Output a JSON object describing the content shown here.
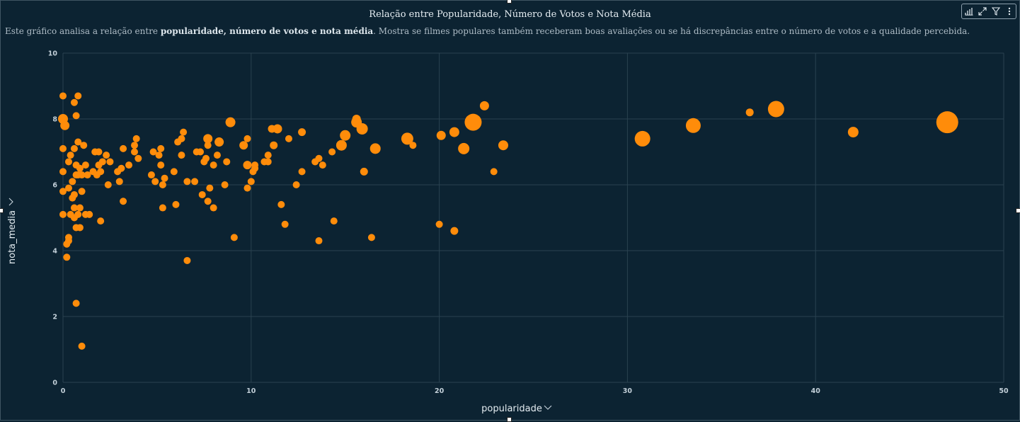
{
  "header": {
    "title": "Relação entre Popularidade, Número de Votos e Nota Média",
    "subtitle_pre": "Este gráfico analisa a relação entre ",
    "subtitle_bold": "popularidade, número de votos e nota média",
    "subtitle_post": ". Mostra se filmes populares também receberam boas avaliações ou se há discrepâncias entre o número de votos e a qualidade percebida."
  },
  "toolbar": {
    "icons": [
      "chart-settings-icon",
      "expand-icon",
      "filter-icon",
      "more-options-icon"
    ]
  },
  "colors": {
    "background": "#0c2332",
    "grid": "#2a4250",
    "point": "#ff8c0a"
  },
  "chart_data": {
    "type": "scatter",
    "title": "Relação entre Popularidade, Número de Votos e Nota Média",
    "xlabel": "popularidade",
    "ylabel": "nota_media",
    "xlim": [
      0,
      50
    ],
    "ylim": [
      0,
      10
    ],
    "x_ticks": [
      "0",
      "10",
      "20",
      "30",
      "40",
      "50"
    ],
    "y_ticks": [
      "0",
      "2",
      "4",
      "6",
      "8",
      "10"
    ],
    "grid": true,
    "size_encoding": "número de votos (relative)",
    "points": [
      {
        "x": 0.0,
        "y": 8.7,
        "s": 1
      },
      {
        "x": 0.0,
        "y": 8.0,
        "s": 1.4
      },
      {
        "x": 0.1,
        "y": 7.8,
        "s": 1.3
      },
      {
        "x": 0.0,
        "y": 7.1,
        "s": 1
      },
      {
        "x": 0.0,
        "y": 6.4,
        "s": 1
      },
      {
        "x": 0.0,
        "y": 5.8,
        "s": 1
      },
      {
        "x": 0.0,
        "y": 5.1,
        "s": 1
      },
      {
        "x": 0.2,
        "y": 4.2,
        "s": 1
      },
      {
        "x": 0.2,
        "y": 3.8,
        "s": 1
      },
      {
        "x": 0.3,
        "y": 4.3,
        "s": 1
      },
      {
        "x": 0.3,
        "y": 4.4,
        "s": 1
      },
      {
        "x": 0.3,
        "y": 5.9,
        "s": 1
      },
      {
        "x": 0.3,
        "y": 6.7,
        "s": 1
      },
      {
        "x": 0.4,
        "y": 6.9,
        "s": 1
      },
      {
        "x": 0.4,
        "y": 5.1,
        "s": 1
      },
      {
        "x": 0.5,
        "y": 5.6,
        "s": 1
      },
      {
        "x": 0.5,
        "y": 6.1,
        "s": 1
      },
      {
        "x": 0.6,
        "y": 8.5,
        "s": 1
      },
      {
        "x": 0.7,
        "y": 8.1,
        "s": 1
      },
      {
        "x": 0.8,
        "y": 8.7,
        "s": 1
      },
      {
        "x": 0.6,
        "y": 5.0,
        "s": 1
      },
      {
        "x": 0.6,
        "y": 5.3,
        "s": 1
      },
      {
        "x": 0.6,
        "y": 5.7,
        "s": 1
      },
      {
        "x": 0.7,
        "y": 6.3,
        "s": 1
      },
      {
        "x": 0.7,
        "y": 6.6,
        "s": 1
      },
      {
        "x": 0.6,
        "y": 7.1,
        "s": 1
      },
      {
        "x": 0.8,
        "y": 7.3,
        "s": 1
      },
      {
        "x": 0.8,
        "y": 6.3,
        "s": 1
      },
      {
        "x": 0.9,
        "y": 6.5,
        "s": 1
      },
      {
        "x": 0.8,
        "y": 5.1,
        "s": 1
      },
      {
        "x": 0.9,
        "y": 5.3,
        "s": 1
      },
      {
        "x": 0.7,
        "y": 4.7,
        "s": 1
      },
      {
        "x": 0.9,
        "y": 4.7,
        "s": 1
      },
      {
        "x": 0.7,
        "y": 2.4,
        "s": 1
      },
      {
        "x": 1.0,
        "y": 1.1,
        "s": 1
      },
      {
        "x": 1.0,
        "y": 5.8,
        "s": 1
      },
      {
        "x": 1.0,
        "y": 6.3,
        "s": 1
      },
      {
        "x": 1.1,
        "y": 7.2,
        "s": 1
      },
      {
        "x": 1.2,
        "y": 6.6,
        "s": 1
      },
      {
        "x": 1.2,
        "y": 5.1,
        "s": 1
      },
      {
        "x": 1.3,
        "y": 6.3,
        "s": 1
      },
      {
        "x": 1.4,
        "y": 5.1,
        "s": 1
      },
      {
        "x": 1.6,
        "y": 6.4,
        "s": 1
      },
      {
        "x": 1.7,
        "y": 7.0,
        "s": 1
      },
      {
        "x": 1.8,
        "y": 6.3,
        "s": 1
      },
      {
        "x": 1.9,
        "y": 6.6,
        "s": 1
      },
      {
        "x": 1.9,
        "y": 7.0,
        "s": 1
      },
      {
        "x": 2.0,
        "y": 6.4,
        "s": 1
      },
      {
        "x": 2.0,
        "y": 4.9,
        "s": 1
      },
      {
        "x": 2.1,
        "y": 6.7,
        "s": 1
      },
      {
        "x": 2.3,
        "y": 6.9,
        "s": 1
      },
      {
        "x": 2.4,
        "y": 6.0,
        "s": 1
      },
      {
        "x": 2.5,
        "y": 6.7,
        "s": 1
      },
      {
        "x": 2.9,
        "y": 6.4,
        "s": 1
      },
      {
        "x": 3.0,
        "y": 6.1,
        "s": 1
      },
      {
        "x": 3.1,
        "y": 6.5,
        "s": 1
      },
      {
        "x": 3.2,
        "y": 7.1,
        "s": 1
      },
      {
        "x": 3.2,
        "y": 5.5,
        "s": 1
      },
      {
        "x": 3.5,
        "y": 6.6,
        "s": 1
      },
      {
        "x": 3.8,
        "y": 7.0,
        "s": 1
      },
      {
        "x": 3.8,
        "y": 7.2,
        "s": 1
      },
      {
        "x": 3.9,
        "y": 7.4,
        "s": 1
      },
      {
        "x": 4.0,
        "y": 6.8,
        "s": 1
      },
      {
        "x": 4.7,
        "y": 6.3,
        "s": 1
      },
      {
        "x": 4.8,
        "y": 7.0,
        "s": 1
      },
      {
        "x": 4.9,
        "y": 6.1,
        "s": 1
      },
      {
        "x": 5.1,
        "y": 6.9,
        "s": 1
      },
      {
        "x": 5.2,
        "y": 7.1,
        "s": 1
      },
      {
        "x": 5.2,
        "y": 6.6,
        "s": 1
      },
      {
        "x": 5.3,
        "y": 6.0,
        "s": 1
      },
      {
        "x": 5.3,
        "y": 5.3,
        "s": 1
      },
      {
        "x": 5.4,
        "y": 6.2,
        "s": 1
      },
      {
        "x": 5.9,
        "y": 6.4,
        "s": 1
      },
      {
        "x": 6.0,
        "y": 5.4,
        "s": 1
      },
      {
        "x": 6.1,
        "y": 7.3,
        "s": 1
      },
      {
        "x": 6.3,
        "y": 7.4,
        "s": 1
      },
      {
        "x": 6.3,
        "y": 6.9,
        "s": 1
      },
      {
        "x": 6.4,
        "y": 7.6,
        "s": 1
      },
      {
        "x": 6.6,
        "y": 3.7,
        "s": 1
      },
      {
        "x": 6.6,
        "y": 6.1,
        "s": 1
      },
      {
        "x": 7.0,
        "y": 6.1,
        "s": 1
      },
      {
        "x": 7.1,
        "y": 7.0,
        "s": 1
      },
      {
        "x": 7.3,
        "y": 7.0,
        "s": 1
      },
      {
        "x": 7.4,
        "y": 5.7,
        "s": 1
      },
      {
        "x": 7.5,
        "y": 6.7,
        "s": 1
      },
      {
        "x": 7.6,
        "y": 6.8,
        "s": 1
      },
      {
        "x": 7.7,
        "y": 7.4,
        "s": 1.3
      },
      {
        "x": 7.7,
        "y": 7.2,
        "s": 1
      },
      {
        "x": 7.7,
        "y": 5.5,
        "s": 1
      },
      {
        "x": 7.8,
        "y": 5.9,
        "s": 1
      },
      {
        "x": 8.0,
        "y": 6.6,
        "s": 1
      },
      {
        "x": 8.0,
        "y": 5.3,
        "s": 1
      },
      {
        "x": 8.2,
        "y": 6.9,
        "s": 1
      },
      {
        "x": 8.3,
        "y": 7.3,
        "s": 1.3
      },
      {
        "x": 8.6,
        "y": 6.0,
        "s": 1
      },
      {
        "x": 8.7,
        "y": 6.7,
        "s": 1
      },
      {
        "x": 8.9,
        "y": 7.9,
        "s": 1.4
      },
      {
        "x": 9.1,
        "y": 4.4,
        "s": 1
      },
      {
        "x": 9.6,
        "y": 7.2,
        "s": 1.2
      },
      {
        "x": 9.8,
        "y": 7.4,
        "s": 1
      },
      {
        "x": 9.8,
        "y": 6.6,
        "s": 1.2
      },
      {
        "x": 9.8,
        "y": 5.9,
        "s": 1
      },
      {
        "x": 10.0,
        "y": 6.1,
        "s": 1
      },
      {
        "x": 10.1,
        "y": 6.4,
        "s": 1
      },
      {
        "x": 10.2,
        "y": 6.6,
        "s": 1
      },
      {
        "x": 10.2,
        "y": 6.5,
        "s": 1
      },
      {
        "x": 10.7,
        "y": 6.7,
        "s": 1
      },
      {
        "x": 10.9,
        "y": 6.7,
        "s": 1
      },
      {
        "x": 10.9,
        "y": 6.9,
        "s": 1
      },
      {
        "x": 11.1,
        "y": 7.7,
        "s": 1.1
      },
      {
        "x": 11.2,
        "y": 7.2,
        "s": 1.1
      },
      {
        "x": 11.4,
        "y": 7.7,
        "s": 1.3
      },
      {
        "x": 11.6,
        "y": 5.4,
        "s": 1
      },
      {
        "x": 11.8,
        "y": 4.8,
        "s": 1
      },
      {
        "x": 12.0,
        "y": 7.4,
        "s": 1
      },
      {
        "x": 12.4,
        "y": 6.0,
        "s": 1
      },
      {
        "x": 12.7,
        "y": 7.6,
        "s": 1.1
      },
      {
        "x": 12.7,
        "y": 6.4,
        "s": 1
      },
      {
        "x": 13.4,
        "y": 6.7,
        "s": 1
      },
      {
        "x": 13.6,
        "y": 6.8,
        "s": 1
      },
      {
        "x": 13.6,
        "y": 4.3,
        "s": 1
      },
      {
        "x": 13.8,
        "y": 6.6,
        "s": 1
      },
      {
        "x": 14.3,
        "y": 7.0,
        "s": 1
      },
      {
        "x": 14.4,
        "y": 4.9,
        "s": 1
      },
      {
        "x": 14.8,
        "y": 7.2,
        "s": 1.5
      },
      {
        "x": 15.0,
        "y": 7.5,
        "s": 1.5
      },
      {
        "x": 15.6,
        "y": 7.9,
        "s": 1.5
      },
      {
        "x": 15.6,
        "y": 8.0,
        "s": 1.2
      },
      {
        "x": 15.9,
        "y": 7.7,
        "s": 1.6
      },
      {
        "x": 16.0,
        "y": 6.4,
        "s": 1.1
      },
      {
        "x": 16.4,
        "y": 4.4,
        "s": 1
      },
      {
        "x": 16.6,
        "y": 7.1,
        "s": 1.5
      },
      {
        "x": 18.3,
        "y": 7.4,
        "s": 1.7
      },
      {
        "x": 18.6,
        "y": 7.2,
        "s": 1
      },
      {
        "x": 20.0,
        "y": 4.8,
        "s": 1
      },
      {
        "x": 20.1,
        "y": 7.5,
        "s": 1.3
      },
      {
        "x": 20.8,
        "y": 7.6,
        "s": 1.4
      },
      {
        "x": 20.8,
        "y": 4.6,
        "s": 1.1
      },
      {
        "x": 21.3,
        "y": 7.1,
        "s": 1.6
      },
      {
        "x": 21.8,
        "y": 7.9,
        "s": 2.4
      },
      {
        "x": 22.4,
        "y": 8.4,
        "s": 1.3
      },
      {
        "x": 22.9,
        "y": 6.4,
        "s": 1
      },
      {
        "x": 23.4,
        "y": 7.2,
        "s": 1.4
      },
      {
        "x": 30.8,
        "y": 7.4,
        "s": 2.2
      },
      {
        "x": 33.5,
        "y": 7.8,
        "s": 2.1
      },
      {
        "x": 36.5,
        "y": 8.2,
        "s": 1.1
      },
      {
        "x": 37.9,
        "y": 8.3,
        "s": 2.3
      },
      {
        "x": 42.0,
        "y": 7.6,
        "s": 1.5
      },
      {
        "x": 47.0,
        "y": 7.9,
        "s": 3.1
      }
    ]
  }
}
